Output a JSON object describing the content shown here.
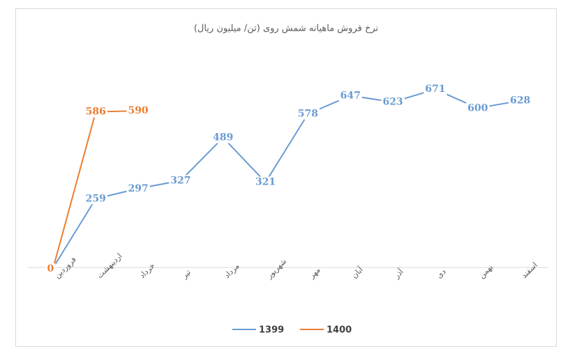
{
  "chart_data": {
    "type": "line",
    "title": "نرخ فروش ماهیانه شمش روی (تن/ میلیون ریال)",
    "categories": [
      "فروردین",
      "اردیبهشت",
      "خرداد",
      "تیر",
      "مرداد",
      "شهریور",
      "مهر",
      "آبان",
      "آذر",
      "دی",
      "بهمن",
      "اسفند"
    ],
    "series": [
      {
        "name": "1399",
        "color": "#6a9bd3",
        "values": [
          0,
          259,
          297,
          327,
          489,
          321,
          578,
          647,
          623,
          671,
          600,
          628
        ]
      },
      {
        "name": "1400",
        "color": "#ed7d31",
        "values": [
          0,
          586,
          590,
          null,
          null,
          null,
          null,
          null,
          null,
          null,
          null,
          null
        ]
      }
    ],
    "ylim": [
      0,
      800
    ],
    "grid": false,
    "legend": "bottom"
  }
}
